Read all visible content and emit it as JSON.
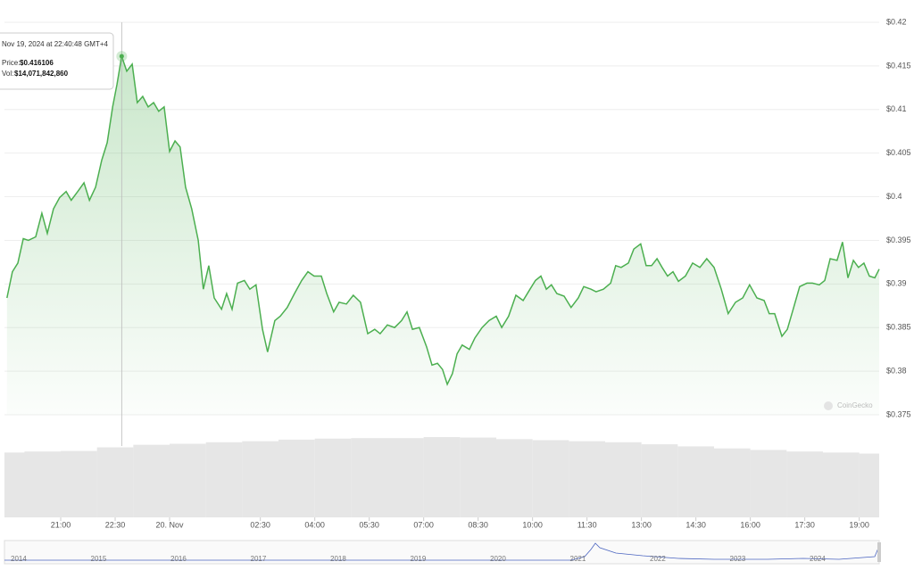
{
  "chart_data": {
    "type": "line",
    "x": [
      19.52,
      19.67,
      19.82,
      19.97,
      20.11,
      20.31,
      20.48,
      20.63,
      20.8,
      20.97,
      21.15,
      21.29,
      21.47,
      21.64,
      21.79,
      21.96,
      22.13,
      22.28,
      22.43,
      22.55,
      22.68,
      22.82,
      22.97,
      23.11,
      23.26,
      23.41,
      23.56,
      23.7,
      23.85,
      24.0,
      24.15,
      24.29,
      24.44,
      24.61,
      24.79,
      24.93,
      25.08,
      25.23,
      25.43,
      25.57,
      25.72,
      25.87,
      26.06,
      26.21,
      26.38,
      26.56,
      26.7,
      26.9,
      27.05,
      27.24,
      27.44,
      27.64,
      27.81,
      27.98,
      28.18,
      28.33,
      28.52,
      28.67,
      28.87,
      29.06,
      29.26,
      29.46,
      29.65,
      29.8,
      30.0,
      30.2,
      30.39,
      30.54,
      30.69,
      30.88,
      31.08,
      31.23,
      31.38,
      31.52,
      31.65,
      31.79,
      31.92,
      32.06,
      32.26,
      32.41,
      32.61,
      32.8,
      33.0,
      33.15,
      33.34,
      33.54,
      33.74,
      33.93,
      34.08,
      34.23,
      34.38,
      34.52,
      34.67,
      34.87,
      35.06,
      35.26,
      35.41,
      35.61,
      35.75,
      35.95,
      36.15,
      36.29,
      36.44,
      36.64,
      36.79,
      36.98,
      37.13,
      37.28,
      37.43,
      37.57,
      37.72,
      37.87,
      38.02,
      38.21,
      38.41,
      38.61,
      38.8,
      39.0,
      39.2,
      39.39,
      39.59,
      39.79,
      39.98,
      40.18,
      40.38,
      40.52,
      40.67,
      40.87,
      41.02,
      41.16,
      41.36,
      41.56,
      41.71,
      41.9,
      42.05,
      42.2,
      42.39,
      42.54,
      42.69,
      42.84,
      42.98,
      43.13,
      43.28,
      43.43,
      43.55
    ],
    "series": [
      {
        "color": "#4caf50",
        "values": [
          0.3884,
          0.3914,
          0.3924,
          0.3952,
          0.395,
          0.3954,
          0.3981,
          0.3958,
          0.3986,
          0.3999,
          0.4006,
          0.3996,
          0.4006,
          0.4016,
          0.3996,
          0.4011,
          0.4042,
          0.4062,
          0.4103,
          0.4129,
          0.416106,
          0.4144,
          0.4152,
          0.4108,
          0.4115,
          0.4103,
          0.4108,
          0.4098,
          0.4103,
          0.4052,
          0.4064,
          0.4057,
          0.4011,
          0.3986,
          0.395,
          0.3894,
          0.3921,
          0.3884,
          0.3871,
          0.3889,
          0.3871,
          0.3901,
          0.3904,
          0.3894,
          0.3899,
          0.3848,
          0.3822,
          0.3858,
          0.3863,
          0.3873,
          0.3889,
          0.3904,
          0.3914,
          0.3909,
          0.3909,
          0.3889,
          0.3868,
          0.3879,
          0.3877,
          0.3887,
          0.3879,
          0.3843,
          0.3848,
          0.3843,
          0.3853,
          0.385,
          0.3858,
          0.3868,
          0.3848,
          0.385,
          0.3828,
          0.3807,
          0.3809,
          0.3802,
          0.3785,
          0.3797,
          0.382,
          0.383,
          0.3825,
          0.3838,
          0.385,
          0.3858,
          0.3863,
          0.385,
          0.3863,
          0.3887,
          0.3881,
          0.3894,
          0.3904,
          0.3909,
          0.3894,
          0.3899,
          0.3889,
          0.3886,
          0.3873,
          0.3884,
          0.3897,
          0.3894,
          0.3891,
          0.3894,
          0.3901,
          0.3921,
          0.3919,
          0.3924,
          0.394,
          0.3946,
          0.3921,
          0.3921,
          0.3929,
          0.3919,
          0.3909,
          0.3914,
          0.3903,
          0.3909,
          0.3924,
          0.3919,
          0.3929,
          0.3919,
          0.3894,
          0.3866,
          0.3879,
          0.3884,
          0.3899,
          0.3884,
          0.3881,
          0.3866,
          0.3866,
          0.384,
          0.3848,
          0.3868,
          0.3897,
          0.3901,
          0.3901,
          0.3899,
          0.3904,
          0.3929,
          0.3927,
          0.3948,
          0.3907,
          0.3927,
          0.3919,
          0.3924,
          0.3909,
          0.3907,
          0.3917
        ]
      }
    ],
    "xlim": [
      19.45,
      43.55
    ],
    "xticks": [
      {
        "value": 21,
        "label": "21:00"
      },
      {
        "value": 22.5,
        "label": "22:30"
      },
      {
        "value": 24,
        "label": "20. Nov"
      },
      {
        "value": 26.5,
        "label": "02:30"
      },
      {
        "value": 28,
        "label": "04:00"
      },
      {
        "value": 29.5,
        "label": "05:30"
      },
      {
        "value": 31,
        "label": "07:00"
      },
      {
        "value": 32.5,
        "label": "08:30"
      },
      {
        "value": 34,
        "label": "10:00"
      },
      {
        "value": 35.5,
        "label": "11:30"
      },
      {
        "value": 37,
        "label": "13:00"
      },
      {
        "value": 38.5,
        "label": "14:30"
      },
      {
        "value": 40,
        "label": "16:00"
      },
      {
        "value": 41.5,
        "label": "17:30"
      },
      {
        "value": 43,
        "label": "19:00"
      }
    ],
    "ylim": [
      0.375,
      0.42
    ],
    "yticks": [
      {
        "value": 0.375,
        "label": "$0.375"
      },
      {
        "value": 0.38,
        "label": "$0.38"
      },
      {
        "value": 0.385,
        "label": "$0.385"
      },
      {
        "value": 0.39,
        "label": "$0.39"
      },
      {
        "value": 0.395,
        "label": "$0.395"
      },
      {
        "value": 0.4,
        "label": "$0.4"
      },
      {
        "value": 0.405,
        "label": "$0.405"
      },
      {
        "value": 0.41,
        "label": "$0.41"
      },
      {
        "value": 0.415,
        "label": "$0.415"
      },
      {
        "value": 0.42,
        "label": "$0.42"
      }
    ],
    "grid": true,
    "volume": {
      "color": "#e6e6e6",
      "x": [
        19.5,
        20.5,
        21.5,
        22.5,
        23.5,
        24.5,
        25.5,
        26.5,
        27.5,
        28.5,
        29.5,
        30.5,
        31.5,
        32.5,
        33.5,
        34.5,
        35.5,
        36.5,
        37.5,
        38.5,
        39.5,
        40.5,
        41.5,
        42.5,
        43.5
      ],
      "values": [
        12600000000,
        12800000000,
        12900000000,
        13600000000,
        14100000000,
        14300000000,
        14600000000,
        14800000000,
        15100000000,
        15300000000,
        15400000000,
        15400000000,
        15600000000,
        15500000000,
        15200000000,
        15000000000,
        14800000000,
        14600000000,
        14200000000,
        13800000000,
        13400000000,
        13100000000,
        12800000000,
        12600000000,
        12400000000
      ]
    },
    "tooltip": {
      "point": 20,
      "date": "Nov 19, 2024 at 22:40:48 GMT+4",
      "price_label": "Price:",
      "price": "$0.416106",
      "vol_label": "Vol:",
      "vol": "$14,071,842,860"
    },
    "navigator": {
      "years": [
        "2014",
        "2015",
        "2016",
        "2017",
        "2018",
        "2019",
        "2020",
        "2021",
        "2022",
        "2023",
        "2024"
      ]
    },
    "watermark": "CoinGecko"
  }
}
